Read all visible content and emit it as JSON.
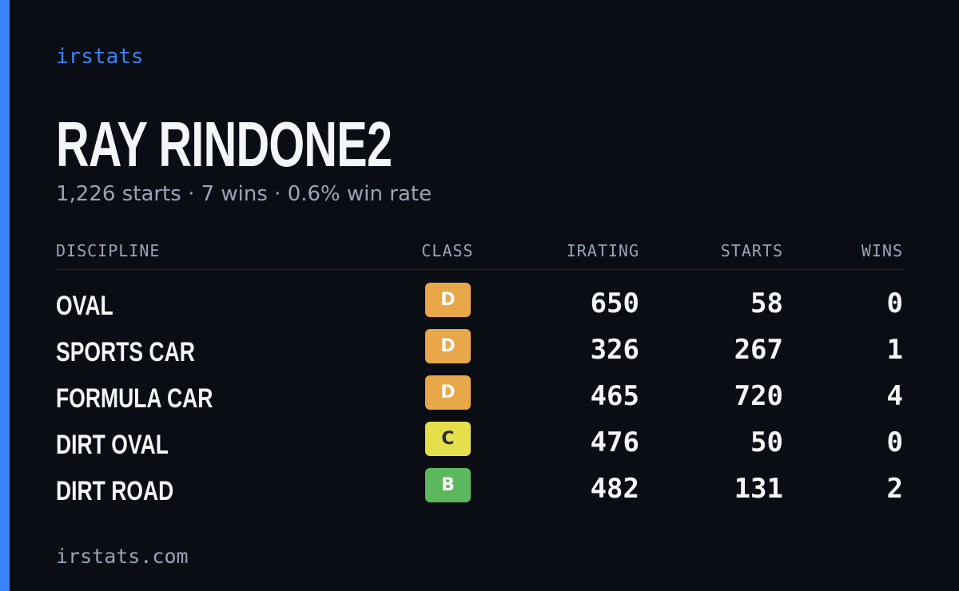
{
  "brand": "irstats",
  "driver": {
    "name": "RAY RINDONE2",
    "summary": "1,226 starts · 7 wins · 0.6% win rate"
  },
  "table": {
    "header": [
      "DISCIPLINE",
      "CLASS",
      "IRATING",
      "STARTS",
      "WINS"
    ],
    "rows": [
      [
        "OVAL",
        "D",
        650,
        58,
        0
      ],
      [
        "SPORTS CAR",
        "D",
        326,
        267,
        1
      ],
      [
        "FORMULA CAR",
        "D",
        465,
        720,
        4
      ],
      [
        "DIRT OVAL",
        "C",
        476,
        50,
        0
      ],
      [
        "DIRT ROAD",
        "B",
        482,
        131,
        2
      ]
    ]
  },
  "footer": "irstats.com"
}
